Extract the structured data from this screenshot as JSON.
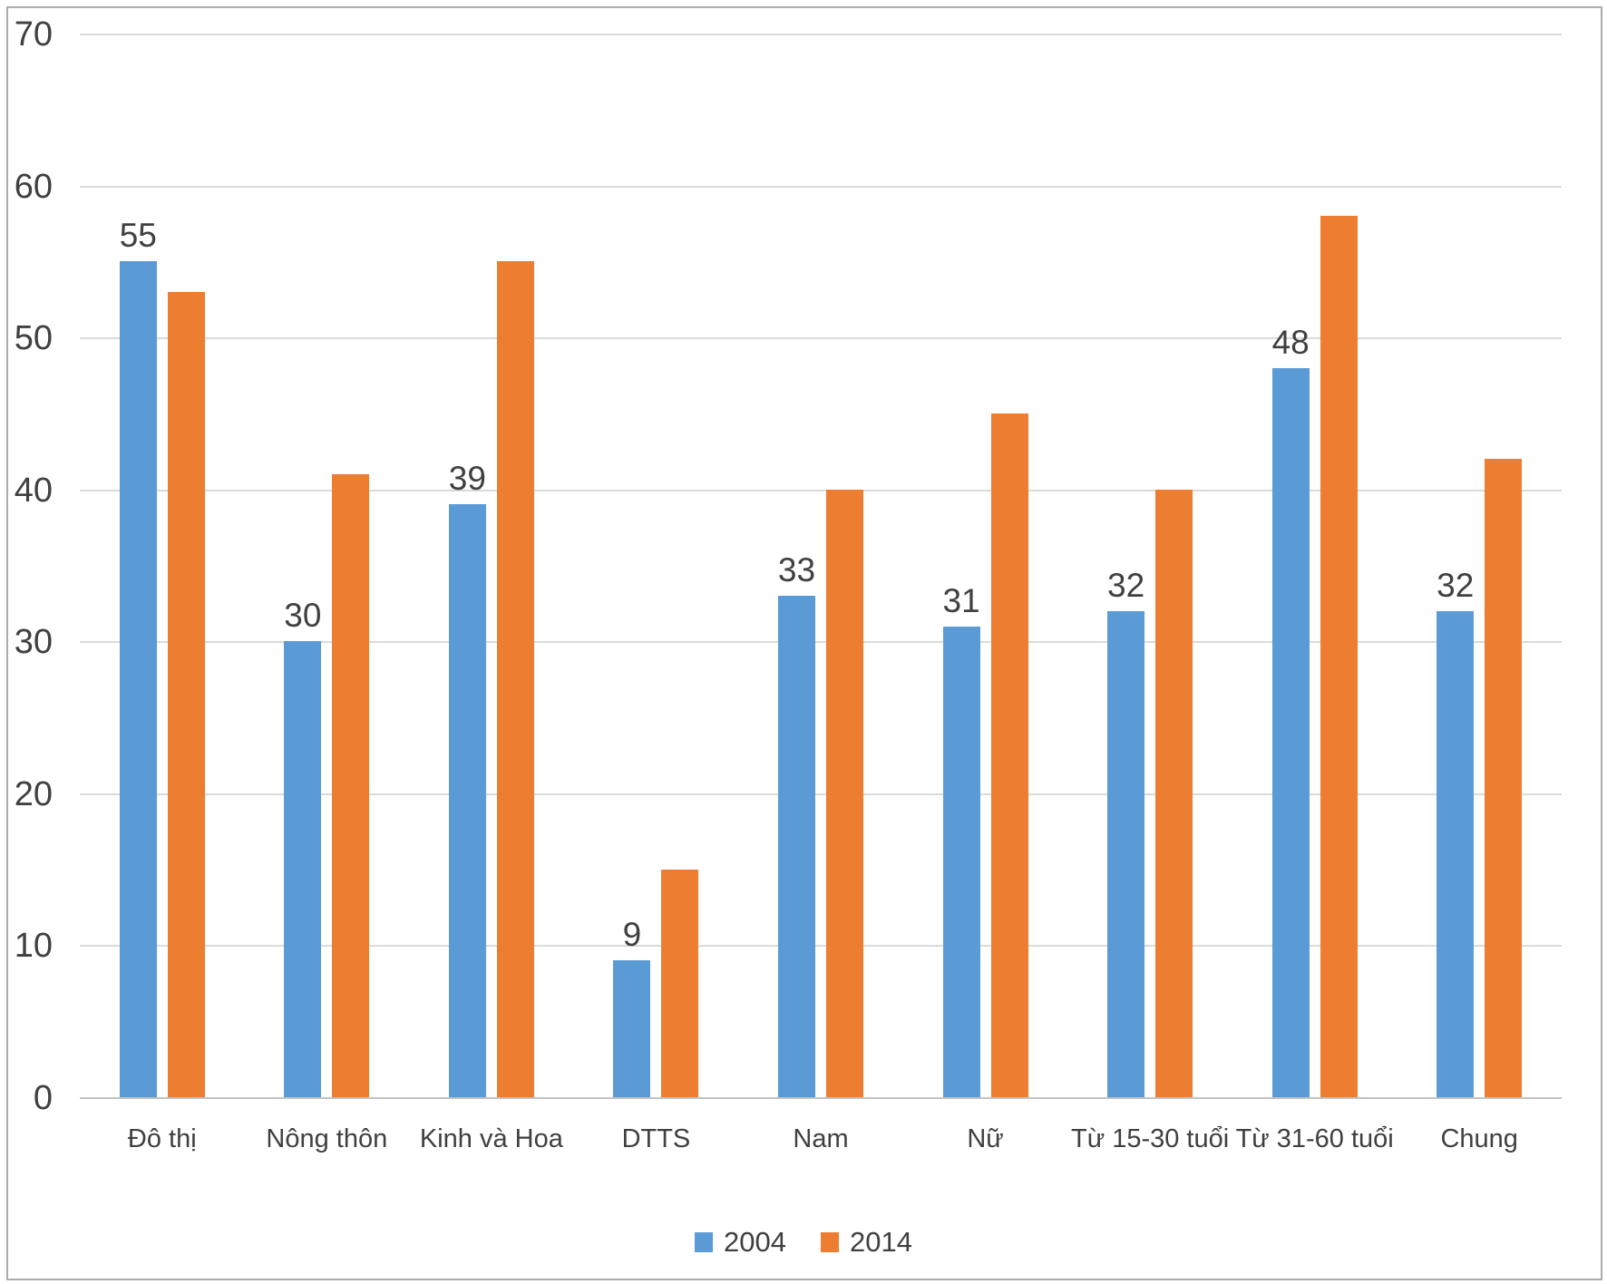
{
  "chart_data": {
    "type": "bar",
    "title": "",
    "categories": [
      "Đô thị",
      "Nông thôn",
      "Kinh và Hoa",
      "DTTS",
      "Nam",
      "Nữ",
      "Từ 15-30 tuổi",
      "Từ 31-60 tuổi",
      "Chung"
    ],
    "series": [
      {
        "name": "2004",
        "color": "#5B9BD5",
        "values": [
          55,
          30,
          39,
          9,
          33,
          31,
          32,
          48,
          32
        ],
        "data_labels_visible": true
      },
      {
        "name": "2014",
        "color": "#ED7D31",
        "values": [
          53,
          41,
          55,
          15,
          40,
          45,
          40,
          58,
          42
        ],
        "data_labels_visible": false
      }
    ],
    "y_axis": {
      "min": 0,
      "max": 70,
      "tick_step": 10,
      "tick_labels": [
        "0",
        "10",
        "20",
        "30",
        "40",
        "50",
        "60",
        "70"
      ]
    },
    "grid": true,
    "legend_position": "bottom",
    "legend": [
      {
        "label": "2004",
        "color": "#5B9BD5"
      },
      {
        "label": "2014",
        "color": "#ED7D31"
      }
    ],
    "colors": {
      "gridline": "#DADADA",
      "baseline": "#C3C3C3",
      "text": "#404040",
      "frame_border": "#ACACAC",
      "background": "#FFFFFF"
    }
  }
}
